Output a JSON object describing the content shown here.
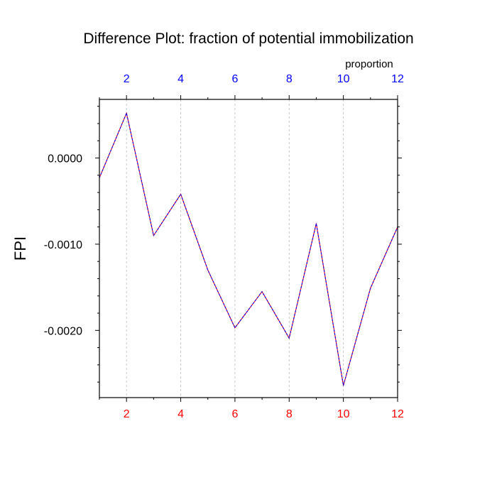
{
  "chart_data": {
    "type": "line",
    "title": "Difference Plot: fraction of potential immobilization",
    "ylabel": "FPI",
    "top_axis_label": "proportion",
    "xlim": [
      1,
      12
    ],
    "ylim": [
      -0.00278,
      0.00068
    ],
    "x_ticks": [
      2,
      4,
      6,
      8,
      10,
      12
    ],
    "x_tick_labels": [
      "2",
      "4",
      "6",
      "8",
      "10",
      "12"
    ],
    "y_ticks": [
      0.0,
      -0.001,
      -0.002
    ],
    "y_tick_labels": [
      "0.0000",
      "-0.0010",
      "-0.0020"
    ],
    "grid_x": true,
    "grid_y": false,
    "colors": {
      "bottom_ticks": "#ff0000",
      "top_ticks": "#0000ff",
      "line_a": "#ff0000",
      "line_b": "#0000ff"
    },
    "series": [
      {
        "x": [
          1,
          2,
          3,
          4,
          5,
          6,
          7,
          8,
          9,
          10,
          11,
          12
        ],
        "values": [
          -0.00023,
          0.00052,
          -0.0009,
          -0.00042,
          -0.0013,
          -0.00197,
          -0.00155,
          -0.00209,
          -0.00076,
          -0.00264,
          -0.00151,
          -0.0008
        ]
      }
    ]
  }
}
